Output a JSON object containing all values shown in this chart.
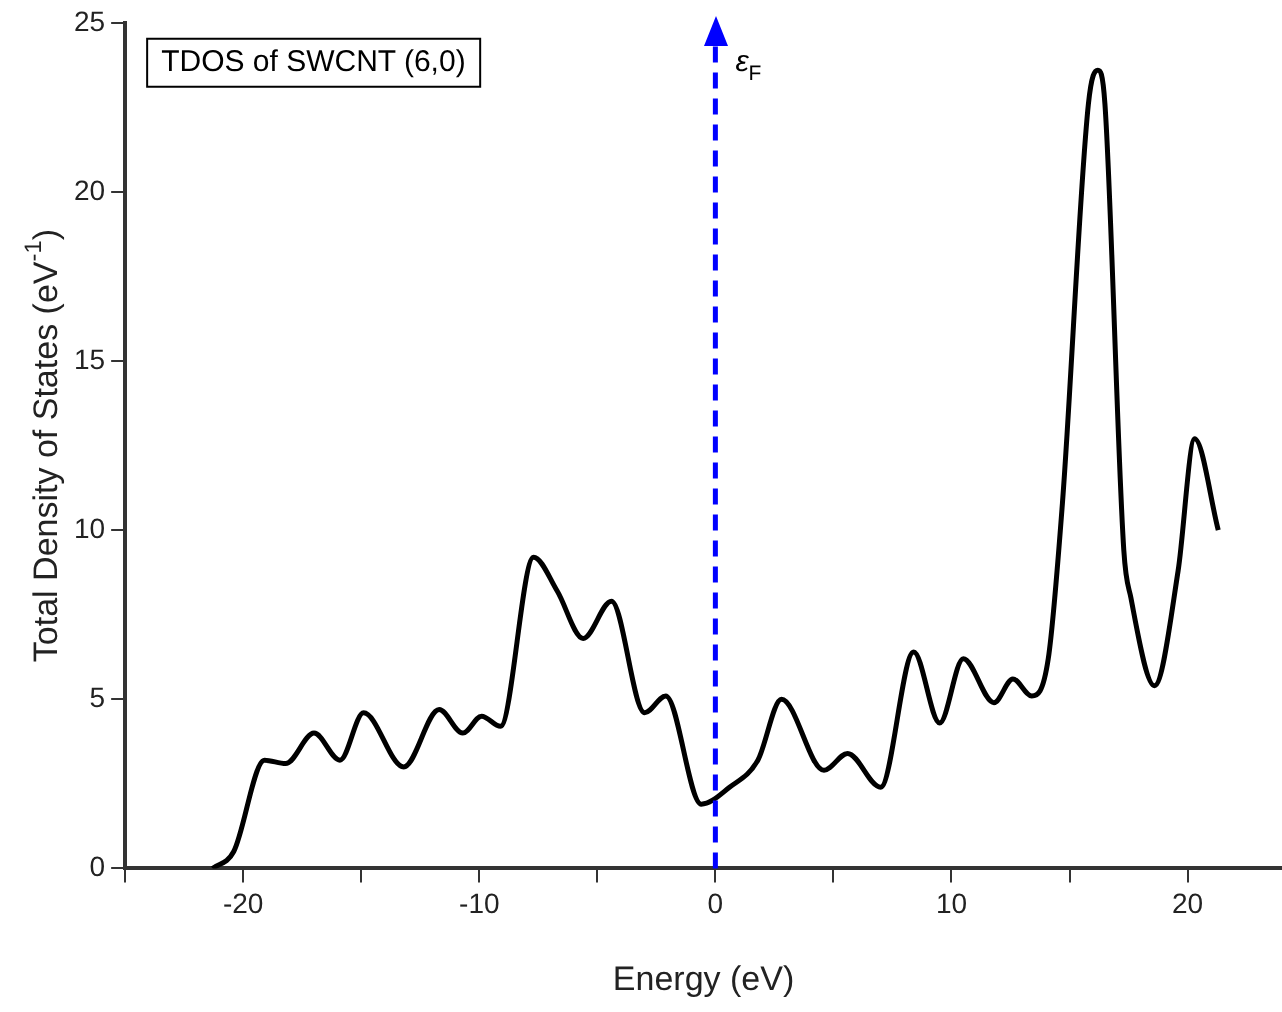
{
  "chart_data": {
    "type": "line",
    "xlabel": "Energy (eV)",
    "ylabel": "Total Density of States (eV$^{-1}$)",
    "annotations": [
      "TDOS of SWCNT (6,0)"
    ],
    "xlim": [
      -25,
      24
    ],
    "xticks": [
      {
        "value": -25,
        "label": null
      },
      -20,
      {
        "value": -15,
        "label": null
      },
      -10,
      {
        "value": -5,
        "label": null
      },
      0,
      {
        "value": 5,
        "label": null
      },
      10,
      {
        "value": 15,
        "label": null
      },
      20
    ],
    "ylim": [
      0,
      25
    ],
    "yticks": [
      0,
      5,
      10,
      15,
      20,
      25
    ],
    "grid": false,
    "legend": false,
    "marker": "none",
    "line_style": "solid",
    "ref_lines": [
      {
        "axis": "x",
        "value": 0,
        "label": "ε$_{F}$",
        "color": "#0000ff",
        "line_style": "dashed"
      }
    ],
    "series": [
      {
        "color": "#000000",
        "x": [
          -21.3,
          -20.4,
          -19.1,
          -18.2,
          -17.0,
          -15.9,
          -14.9,
          -13.2,
          -11.7,
          -10.7,
          -9.9,
          -9.1,
          -7.7,
          -6.7,
          -5.6,
          -4.4,
          -3.0,
          -2.1,
          -0.6,
          0.6,
          1.8,
          2.8,
          4.6,
          5.6,
          7.0,
          8.4,
          9.5,
          10.5,
          11.8,
          12.6,
          13.4,
          14.1,
          14.7,
          15.8,
          16.2,
          16.5,
          17.3,
          17.6,
          18.6,
          19.6,
          20.3,
          21.3
        ],
        "values": [
          0,
          0.5,
          3.2,
          3.1,
          4.0,
          3.2,
          4.6,
          3.0,
          4.7,
          4.0,
          4.5,
          4.2,
          9.2,
          8.2,
          6.8,
          7.9,
          4.6,
          5.1,
          1.9,
          2.4,
          3.2,
          5.0,
          2.9,
          3.4,
          2.4,
          6.4,
          4.3,
          6.2,
          4.9,
          5.6,
          5.1,
          6.2,
          10.8,
          22.6,
          23.6,
          22.6,
          9.4,
          8.0,
          5.4,
          8.8,
          12.7,
          10.0
        ]
      }
    ]
  }
}
